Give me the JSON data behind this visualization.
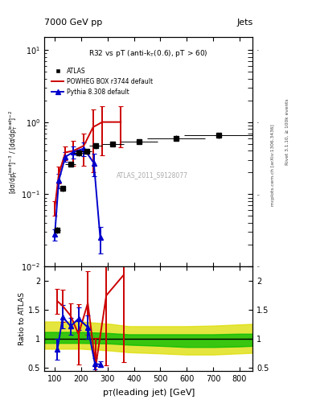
{
  "title_top_left": "7000 GeV pp",
  "title_top_right": "Jets",
  "inner_title": "R32 vs pT (anti-k_{T}(0.6), pT > 60)",
  "watermark": "ATLAS_2011_S9128077",
  "right_label1": "mcplots.cern.ch [arXiv:1306.3436]",
  "right_label2": "Rivet 3.1.10, ≥ 100k events",
  "ylabel_main": "[dσ/dp_{T}^{lead}]^{-3} / [dσ/dp_{T}^{lead}]^{-2}",
  "ylabel_ratio": "Ratio to ATLAS",
  "xlabel": "p_{T}(leading jet) [GeV]",
  "atlas_x": [
    110,
    130,
    160,
    190,
    220,
    255,
    320,
    420,
    560,
    720
  ],
  "atlas_y": [
    0.032,
    0.12,
    0.26,
    0.37,
    0.39,
    0.47,
    0.5,
    0.54,
    0.6,
    0.65
  ],
  "atlas_xerr_lo": [
    10,
    10,
    20,
    20,
    20,
    25,
    40,
    70,
    110,
    130
  ],
  "atlas_xerr_hi": [
    10,
    10,
    20,
    20,
    20,
    25,
    40,
    70,
    110,
    130
  ],
  "atlas_yerr_lo": [
    0.003,
    0.01,
    0.02,
    0.03,
    0.03,
    0.04,
    0.04,
    0.045,
    0.05,
    0.055
  ],
  "atlas_yerr_hi": [
    0.003,
    0.01,
    0.02,
    0.03,
    0.03,
    0.04,
    0.04,
    0.045,
    0.05,
    0.055
  ],
  "powheg_x": [
    100,
    115,
    140,
    170,
    210,
    245,
    280,
    350
  ],
  "powheg_y": [
    0.065,
    0.19,
    0.38,
    0.4,
    0.47,
    0.85,
    1.0,
    1.0
  ],
  "powheg_yerr_lo": [
    0.015,
    0.05,
    0.08,
    0.15,
    0.22,
    0.65,
    0.65,
    0.55
  ],
  "powheg_yerr_hi": [
    0.015,
    0.05,
    0.08,
    0.15,
    0.22,
    0.65,
    0.65,
    0.65
  ],
  "pythia_x": [
    100,
    115,
    140,
    170,
    210,
    248,
    272
  ],
  "pythia_y": [
    0.028,
    0.155,
    0.33,
    0.385,
    0.43,
    0.27,
    0.025
  ],
  "pythia_yerr_lo": [
    0.005,
    0.035,
    0.05,
    0.07,
    0.09,
    0.09,
    0.01
  ],
  "pythia_yerr_hi": [
    0.005,
    0.035,
    0.05,
    0.07,
    0.09,
    0.09,
    0.01
  ],
  "ratio_powheg_x": [
    110,
    130,
    160,
    190,
    225,
    255,
    295,
    360
  ],
  "ratio_powheg_y": [
    1.65,
    1.57,
    1.4,
    1.08,
    1.62,
    0.53,
    1.75,
    2.1
  ],
  "ratio_powheg_yerr_lo": [
    0.22,
    0.28,
    0.22,
    0.52,
    0.55,
    0.48,
    1.2,
    1.5
  ],
  "ratio_powheg_yerr_hi": [
    0.22,
    0.28,
    0.22,
    0.52,
    0.55,
    0.48,
    1.2,
    1.5
  ],
  "ratio_pythia_x": [
    110,
    130,
    160,
    190,
    225,
    252,
    272
  ],
  "ratio_pythia_y": [
    0.82,
    1.38,
    1.22,
    1.35,
    1.2,
    0.57,
    0.56
  ],
  "ratio_pythia_yerr_lo": [
    0.18,
    0.2,
    0.15,
    0.2,
    0.2,
    0.1,
    0.05
  ],
  "ratio_pythia_yerr_hi": [
    0.18,
    0.2,
    0.15,
    0.2,
    0.2,
    0.1,
    0.05
  ],
  "band_x": [
    60,
    150,
    200,
    310,
    380,
    500,
    600,
    700,
    800,
    850
  ],
  "band_green_lo": [
    0.93,
    0.93,
    0.93,
    0.92,
    0.9,
    0.88,
    0.86,
    0.86,
    0.87,
    0.88
  ],
  "band_green_hi": [
    1.12,
    1.12,
    1.12,
    1.1,
    1.08,
    1.08,
    1.08,
    1.08,
    1.09,
    1.09
  ],
  "band_yellow_lo": [
    0.83,
    0.83,
    0.83,
    0.8,
    0.77,
    0.75,
    0.73,
    0.73,
    0.75,
    0.76
  ],
  "band_yellow_hi": [
    1.3,
    1.3,
    1.3,
    1.26,
    1.22,
    1.22,
    1.22,
    1.23,
    1.25,
    1.26
  ],
  "color_atlas": "#000000",
  "color_powheg": "#cc0000",
  "color_pythia": "#0000cc",
  "color_green": "#00bb00",
  "color_yellow": "#dddd00",
  "ylim_main": [
    0.01,
    15.0
  ],
  "ylim_ratio": [
    0.45,
    2.25
  ],
  "xlim": [
    60,
    850
  ]
}
